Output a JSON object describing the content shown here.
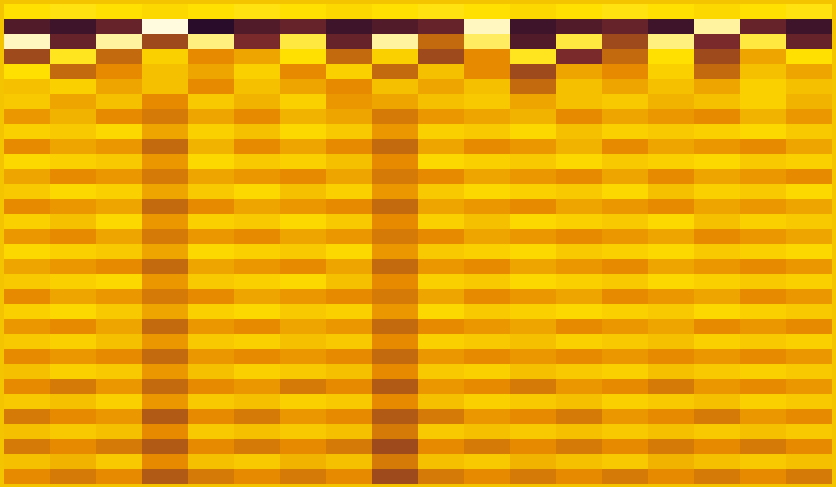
{
  "chart_data": {
    "type": "heatmap",
    "tick_labels": false,
    "zlim": [
      -100,
      100
    ],
    "cells": [
      [
        20,
        25,
        20,
        15,
        20,
        25,
        20,
        15,
        20,
        25,
        20,
        15,
        20,
        25,
        20,
        15,
        20,
        25
      ],
      [
        -70,
        -80,
        -60,
        90,
        -90,
        -70,
        -60,
        -80,
        -70,
        -60,
        80,
        -80,
        -70,
        -60,
        -80,
        70,
        -60,
        -80
      ],
      [
        80,
        -60,
        70,
        -40,
        60,
        -50,
        40,
        -60,
        70,
        -30,
        50,
        -70,
        40,
        -40,
        60,
        -50,
        40,
        -60
      ],
      [
        -40,
        30,
        -30,
        10,
        -20,
        -10,
        20,
        -30,
        10,
        -40,
        -20,
        30,
        -50,
        -30,
        20,
        -40,
        -10,
        20
      ],
      [
        20,
        -30,
        -20,
        0,
        -10,
        10,
        -20,
        10,
        -30,
        0,
        -20,
        -40,
        -10,
        -20,
        10,
        -30,
        0,
        -10
      ],
      [
        0,
        10,
        -10,
        0,
        -20,
        0,
        -10,
        -20,
        0,
        -10,
        0,
        -30,
        0,
        -10,
        0,
        -10,
        10,
        0
      ],
      [
        5,
        -10,
        0,
        -20,
        5,
        -5,
        10,
        -15,
        -10,
        0,
        5,
        -10,
        0,
        5,
        -5,
        0,
        10,
        -5
      ],
      [
        -15,
        -5,
        -20,
        -25,
        -10,
        -20,
        -5,
        -10,
        -25,
        -15,
        -10,
        -5,
        -20,
        -10,
        -15,
        -20,
        -5,
        -15
      ],
      [
        10,
        5,
        15,
        -10,
        10,
        0,
        15,
        5,
        -15,
        10,
        5,
        15,
        0,
        10,
        5,
        10,
        15,
        5
      ],
      [
        -20,
        -10,
        -15,
        -30,
        -5,
        -20,
        -10,
        -20,
        -30,
        -10,
        -20,
        -15,
        -5,
        -20,
        -10,
        -15,
        -20,
        -10
      ],
      [
        15,
        10,
        5,
        -15,
        15,
        5,
        10,
        0,
        -20,
        15,
        10,
        5,
        15,
        5,
        10,
        15,
        5,
        10
      ],
      [
        -10,
        -20,
        -15,
        -25,
        -10,
        -15,
        -20,
        -10,
        -25,
        -20,
        -10,
        -15,
        -20,
        -10,
        -20,
        -10,
        -15,
        -20
      ],
      [
        5,
        15,
        10,
        -10,
        5,
        15,
        0,
        10,
        -15,
        5,
        15,
        10,
        5,
        15,
        0,
        10,
        5,
        15
      ],
      [
        -20,
        -15,
        -10,
        -30,
        -20,
        -10,
        -15,
        -20,
        -30,
        -10,
        -15,
        -20,
        -10,
        -15,
        -20,
        -10,
        -15,
        -10
      ],
      [
        10,
        0,
        15,
        -15,
        10,
        5,
        15,
        5,
        -20,
        10,
        0,
        15,
        10,
        5,
        15,
        0,
        10,
        5
      ],
      [
        -15,
        -20,
        -10,
        -25,
        -15,
        -20,
        -10,
        -15,
        -25,
        -20,
        -10,
        -15,
        -20,
        -15,
        -10,
        -20,
        -15,
        -10
      ],
      [
        15,
        10,
        5,
        -10,
        15,
        10,
        5,
        15,
        -15,
        5,
        10,
        15,
        5,
        10,
        15,
        5,
        10,
        15
      ],
      [
        -10,
        -15,
        -20,
        -30,
        -10,
        -15,
        -20,
        -10,
        -30,
        -15,
        -20,
        -10,
        -15,
        -20,
        -10,
        -15,
        -20,
        -15
      ],
      [
        5,
        10,
        15,
        -15,
        5,
        10,
        15,
        0,
        -20,
        10,
        5,
        15,
        10,
        5,
        15,
        10,
        5,
        10
      ],
      [
        -20,
        -10,
        -15,
        -25,
        -20,
        -10,
        -15,
        -20,
        -25,
        -10,
        -20,
        -15,
        -10,
        -20,
        -15,
        -10,
        -20,
        -15
      ],
      [
        10,
        15,
        5,
        -10,
        10,
        15,
        5,
        10,
        -15,
        15,
        5,
        10,
        15,
        10,
        5,
        15,
        10,
        5
      ],
      [
        -15,
        -20,
        -10,
        -30,
        -15,
        -20,
        -10,
        -15,
        -30,
        -20,
        -15,
        -10,
        -20,
        -15,
        -10,
        -20,
        -15,
        -20
      ],
      [
        5,
        10,
        0,
        -15,
        5,
        10,
        0,
        5,
        -20,
        10,
        5,
        0,
        10,
        5,
        0,
        10,
        5,
        10
      ],
      [
        -20,
        -15,
        -20,
        -30,
        -15,
        -20,
        -15,
        -20,
        -30,
        -15,
        -20,
        -15,
        -20,
        -15,
        -20,
        -15,
        -20,
        -15
      ],
      [
        0,
        10,
        5,
        -15,
        0,
        10,
        5,
        0,
        -20,
        5,
        10,
        0,
        5,
        10,
        0,
        5,
        10,
        5
      ],
      [
        -20,
        -25,
        -15,
        -30,
        -20,
        -15,
        -25,
        -20,
        -35,
        -15,
        -20,
        -25,
        -15,
        -20,
        -25,
        -15,
        -20,
        -15
      ],
      [
        5,
        0,
        10,
        -15,
        5,
        0,
        10,
        5,
        -20,
        0,
        10,
        5,
        0,
        10,
        5,
        0,
        10,
        5
      ],
      [
        -25,
        -20,
        -15,
        -35,
        -20,
        -25,
        -15,
        -20,
        -35,
        -25,
        -15,
        -20,
        -25,
        -15,
        -20,
        -25,
        -15,
        -20
      ],
      [
        0,
        5,
        0,
        -20,
        5,
        0,
        5,
        0,
        -25,
        5,
        0,
        5,
        0,
        5,
        0,
        5,
        0,
        5
      ],
      [
        -25,
        -20,
        -25,
        -35,
        -20,
        -25,
        -20,
        -25,
        -40,
        -20,
        -25,
        -20,
        -25,
        -20,
        -25,
        -20,
        -25,
        -20
      ],
      [
        0,
        -5,
        5,
        -20,
        0,
        5,
        -5,
        0,
        -25,
        0,
        5,
        -5,
        0,
        5,
        -5,
        0,
        5,
        0
      ],
      [
        -20,
        -25,
        -20,
        -35,
        -25,
        -20,
        -25,
        -20,
        -40,
        -25,
        -20,
        -25,
        -20,
        -25,
        -20,
        -25,
        -20,
        -25
      ]
    ]
  }
}
